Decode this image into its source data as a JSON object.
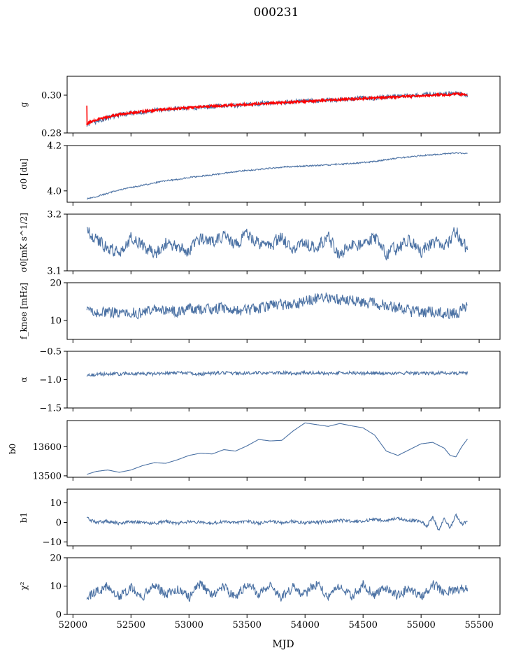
{
  "figure": {
    "title": "000231",
    "xlabel": "MJD"
  },
  "colors": {
    "series": "#4c72a4",
    "fit": "#ff0000"
  },
  "chart_data": [
    {
      "type": "line",
      "ylabel": "g",
      "ylim": [
        0.28,
        0.31
      ],
      "yticks": [
        0.28,
        0.3
      ],
      "ytick_labels": [
        "0.28",
        "0.30"
      ],
      "series_kind": "gain",
      "fit_kind": "gain-fit",
      "x": [
        52120,
        52200,
        52300,
        52400,
        52500,
        52600,
        52700,
        52800,
        52900,
        53000,
        53100,
        53200,
        53300,
        53400,
        53500,
        53600,
        53700,
        53800,
        53900,
        54000,
        54100,
        54200,
        54300,
        54400,
        54500,
        54600,
        54700,
        54800,
        54900,
        55000,
        55100,
        55200,
        55300,
        55400
      ],
      "y": [
        0.2845,
        0.286,
        0.288,
        0.2895,
        0.2905,
        0.291,
        0.292,
        0.2925,
        0.293,
        0.293,
        0.2935,
        0.294,
        0.2945,
        0.2945,
        0.295,
        0.2955,
        0.296,
        0.296,
        0.2965,
        0.297,
        0.297,
        0.2975,
        0.2975,
        0.298,
        0.2985,
        0.2985,
        0.299,
        0.2995,
        0.2995,
        0.3,
        0.3005,
        0.3005,
        0.301,
        0.3
      ],
      "fit_y": [
        0.285,
        0.287,
        0.2885,
        0.2898,
        0.2907,
        0.2914,
        0.292,
        0.2926,
        0.293,
        0.2934,
        0.2938,
        0.2942,
        0.2945,
        0.2948,
        0.2951,
        0.2955,
        0.2958,
        0.2961,
        0.2964,
        0.2967,
        0.297,
        0.2973,
        0.2976,
        0.2979,
        0.2982,
        0.2985,
        0.2988,
        0.2991,
        0.2994,
        0.2997,
        0.3,
        0.3003,
        0.3006,
        0.3002
      ]
    },
    {
      "type": "line",
      "ylabel": "σ0 [du]",
      "ylim": [
        3.95,
        4.2
      ],
      "yticks": [
        4.0,
        4.2
      ],
      "ytick_labels": [
        "4.0",
        "4.2"
      ],
      "series_kind": "sigma-du",
      "x": [
        52120,
        52200,
        52300,
        52400,
        52500,
        52600,
        52700,
        52800,
        52900,
        53000,
        53100,
        53200,
        53300,
        53400,
        53500,
        53600,
        53700,
        53800,
        53900,
        54000,
        54100,
        54200,
        54300,
        54400,
        54500,
        54600,
        54700,
        54800,
        54900,
        55000,
        55100,
        55200,
        55300,
        55400
      ],
      "y": [
        3.965,
        3.975,
        3.99,
        4.005,
        4.015,
        4.025,
        4.035,
        4.045,
        4.05,
        4.06,
        4.065,
        4.07,
        4.078,
        4.085,
        4.09,
        4.095,
        4.1,
        4.105,
        4.108,
        4.11,
        4.112,
        4.115,
        4.118,
        4.12,
        4.125,
        4.13,
        4.138,
        4.145,
        4.15,
        4.155,
        4.16,
        4.163,
        4.168,
        4.165
      ]
    },
    {
      "type": "line",
      "ylabel": "σ0[mK s^1/2]",
      "ylim": [
        3.1,
        3.2
      ],
      "yticks": [
        3.1,
        3.2
      ],
      "ytick_labels": [
        "3.1",
        "3.2"
      ],
      "series_kind": "sigma-mk",
      "x": [
        52120,
        52200,
        52300,
        52400,
        52500,
        52600,
        52700,
        52800,
        52900,
        53000,
        53100,
        53200,
        53300,
        53400,
        53500,
        53600,
        53700,
        53800,
        53900,
        54000,
        54100,
        54200,
        54300,
        54400,
        54500,
        54600,
        54700,
        54800,
        54900,
        55000,
        55100,
        55200,
        55300,
        55400
      ],
      "y": [
        3.168,
        3.155,
        3.14,
        3.13,
        3.158,
        3.145,
        3.128,
        3.15,
        3.14,
        3.135,
        3.155,
        3.15,
        3.16,
        3.145,
        3.165,
        3.15,
        3.145,
        3.16,
        3.135,
        3.15,
        3.14,
        3.16,
        3.125,
        3.15,
        3.145,
        3.16,
        3.13,
        3.14,
        3.155,
        3.135,
        3.15,
        3.14,
        3.17,
        3.135
      ]
    },
    {
      "type": "line",
      "ylabel": "f_knee [mHz]",
      "ylim": [
        5,
        20
      ],
      "yticks": [
        10,
        20
      ],
      "ytick_labels": [
        "10",
        "20"
      ],
      "series_kind": "fknee",
      "x": [
        52120,
        52200,
        52300,
        52400,
        52500,
        52600,
        52700,
        52800,
        52900,
        53000,
        53100,
        53200,
        53300,
        53400,
        53500,
        53600,
        53700,
        53800,
        53900,
        54000,
        54100,
        54200,
        54300,
        54400,
        54500,
        54600,
        54700,
        54800,
        54900,
        55000,
        55100,
        55200,
        55300,
        55400
      ],
      "y": [
        13.0,
        12.5,
        12.0,
        12.5,
        12.2,
        12.0,
        12.8,
        12.5,
        12.2,
        13.0,
        12.8,
        13.2,
        13.5,
        13.0,
        12.5,
        13.2,
        13.8,
        14.0,
        14.5,
        15.0,
        15.8,
        16.0,
        15.5,
        15.2,
        14.8,
        14.5,
        14.0,
        13.5,
        12.5,
        12.0,
        12.5,
        11.8,
        12.0,
        14.0
      ]
    },
    {
      "type": "line",
      "ylabel": "α",
      "ylim": [
        -1.5,
        -0.5
      ],
      "yticks": [
        -1.5,
        -1.0,
        -0.5
      ],
      "ytick_labels": [
        "−1.5",
        "−1.0",
        "−0.5"
      ],
      "series_kind": "alpha",
      "x": [
        52120,
        52200,
        52300,
        52400,
        52500,
        52600,
        52700,
        52800,
        52900,
        53000,
        53100,
        53200,
        53300,
        53400,
        53500,
        53600,
        53700,
        53800,
        53900,
        54000,
        54100,
        54200,
        54300,
        54400,
        54500,
        54600,
        54700,
        54800,
        54900,
        55000,
        55100,
        55200,
        55300,
        55400
      ],
      "y": [
        -0.92,
        -0.91,
        -0.9,
        -0.9,
        -0.89,
        -0.89,
        -0.9,
        -0.89,
        -0.88,
        -0.89,
        -0.9,
        -0.89,
        -0.88,
        -0.89,
        -0.89,
        -0.88,
        -0.89,
        -0.88,
        -0.89,
        -0.88,
        -0.88,
        -0.89,
        -0.88,
        -0.88,
        -0.89,
        -0.88,
        -0.89,
        -0.89,
        -0.88,
        -0.89,
        -0.89,
        -0.88,
        -0.89,
        -0.88
      ]
    },
    {
      "type": "line",
      "ylabel": "b0",
      "ylim": [
        13495,
        13690
      ],
      "yticks": [
        13500,
        13600
      ],
      "ytick_labels": [
        "13500",
        "13600"
      ],
      "series_kind": "b0",
      "x": [
        52120,
        52200,
        52300,
        52400,
        52500,
        52600,
        52700,
        52800,
        52900,
        53000,
        53100,
        53200,
        53300,
        53400,
        53500,
        53600,
        53700,
        53800,
        53900,
        54000,
        54100,
        54200,
        54300,
        54400,
        54500,
        54600,
        54700,
        54800,
        54900,
        55000,
        55100,
        55200,
        55250,
        55300,
        55350,
        55400
      ],
      "y": [
        13505,
        13515,
        13520,
        13512,
        13520,
        13535,
        13545,
        13543,
        13555,
        13570,
        13578,
        13575,
        13590,
        13585,
        13603,
        13625,
        13620,
        13622,
        13655,
        13682,
        13676,
        13670,
        13680,
        13672,
        13665,
        13640,
        13585,
        13570,
        13590,
        13610,
        13615,
        13595,
        13570,
        13565,
        13600,
        13627
      ]
    },
    {
      "type": "line",
      "ylabel": "b1",
      "ylim": [
        -12,
        17
      ],
      "yticks": [
        -10,
        0,
        10
      ],
      "ytick_labels": [
        "−10",
        "0",
        "10"
      ],
      "series_kind": "b1",
      "x": [
        52120,
        52200,
        52300,
        52400,
        52500,
        52600,
        52700,
        52800,
        52900,
        53000,
        53100,
        53200,
        53300,
        53400,
        53500,
        53600,
        53700,
        53800,
        53900,
        54000,
        54100,
        54200,
        54300,
        54400,
        54500,
        54600,
        54700,
        54800,
        54900,
        55000,
        55050,
        55100,
        55150,
        55200,
        55250,
        55300,
        55350,
        55400
      ],
      "y": [
        2.0,
        0.0,
        0.5,
        -0.5,
        0.3,
        0.0,
        -0.5,
        0.5,
        -0.5,
        0.3,
        0.0,
        -0.5,
        0.5,
        0.0,
        0.5,
        -0.5,
        0.3,
        0.0,
        0.5,
        -0.3,
        0.0,
        0.5,
        1.0,
        0.5,
        0.8,
        1.5,
        1.0,
        2.0,
        1.0,
        0.5,
        -2.0,
        3.0,
        -4.0,
        2.0,
        -3.0,
        4.0,
        -1.0,
        0.5
      ]
    },
    {
      "type": "line",
      "ylabel": "χ²",
      "ylim": [
        0,
        20
      ],
      "yticks": [
        0,
        10,
        20
      ],
      "ytick_labels": [
        "0",
        "10",
        "20"
      ],
      "series_kind": "chi2",
      "x": [
        52120,
        52200,
        52300,
        52400,
        52500,
        52600,
        52700,
        52800,
        52900,
        53000,
        53100,
        53200,
        53300,
        53400,
        53500,
        53600,
        53700,
        53800,
        53900,
        54000,
        54100,
        54200,
        54300,
        54400,
        54500,
        54600,
        54700,
        54800,
        54900,
        55000,
        55100,
        55200,
        55300,
        55400
      ],
      "y": [
        6.0,
        8.0,
        10.0,
        6.5,
        9.5,
        6.0,
        10.5,
        7.0,
        9.0,
        6.0,
        11.0,
        6.5,
        9.5,
        6.0,
        11.0,
        7.0,
        10.0,
        6.0,
        9.5,
        7.0,
        11.0,
        6.5,
        10.0,
        6.0,
        10.5,
        7.0,
        9.5,
        6.5,
        10.0,
        6.0,
        10.5,
        7.5,
        9.0,
        9.0
      ]
    }
  ],
  "x_axis": {
    "xlim": [
      51950,
      55680
    ],
    "ticks": [
      52000,
      52500,
      53000,
      53500,
      54000,
      54500,
      55000,
      55500
    ],
    "tick_labels": [
      "52000",
      "52500",
      "53000",
      "53500",
      "54000",
      "54500",
      "55000",
      "55500"
    ]
  }
}
